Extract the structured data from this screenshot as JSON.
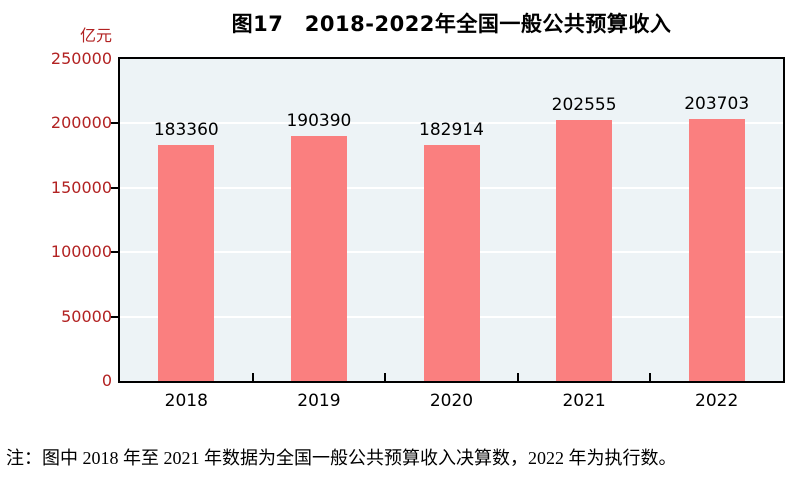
{
  "page": {
    "title": "图17　2018-2022年全国一般公共预算收入",
    "unit_label": "亿元",
    "note": "注：图中 2018 年至 2021 年数据为全国一般公共预算收入决算数，2022 年为执行数。"
  },
  "chart_data": {
    "type": "bar",
    "title": "图17　2018-2022年全国一般公共预算收入",
    "unit_label": "亿元",
    "categories": [
      "2018",
      "2019",
      "2020",
      "2021",
      "2022"
    ],
    "values": [
      183360,
      190390,
      182914,
      202555,
      203703
    ],
    "ylim": [
      0,
      250000
    ],
    "yticks": [
      0,
      50000,
      100000,
      150000,
      200000,
      250000
    ],
    "xlabel": "",
    "ylabel": "亿元",
    "grid": true,
    "legend_position": "none",
    "note": "注：图中 2018 年至 2021 年数据为全国一般公共预算收入决算数，2022 年为执行数。",
    "colors": {
      "bar": "#FA7F7F",
      "plot_background": "#EDF3F6",
      "gridline": "#FFFFFF",
      "axis_tick_label": "#B22222",
      "x_tick_label": "#000000",
      "value_label": "#000000",
      "frame_border": "#000000"
    }
  }
}
